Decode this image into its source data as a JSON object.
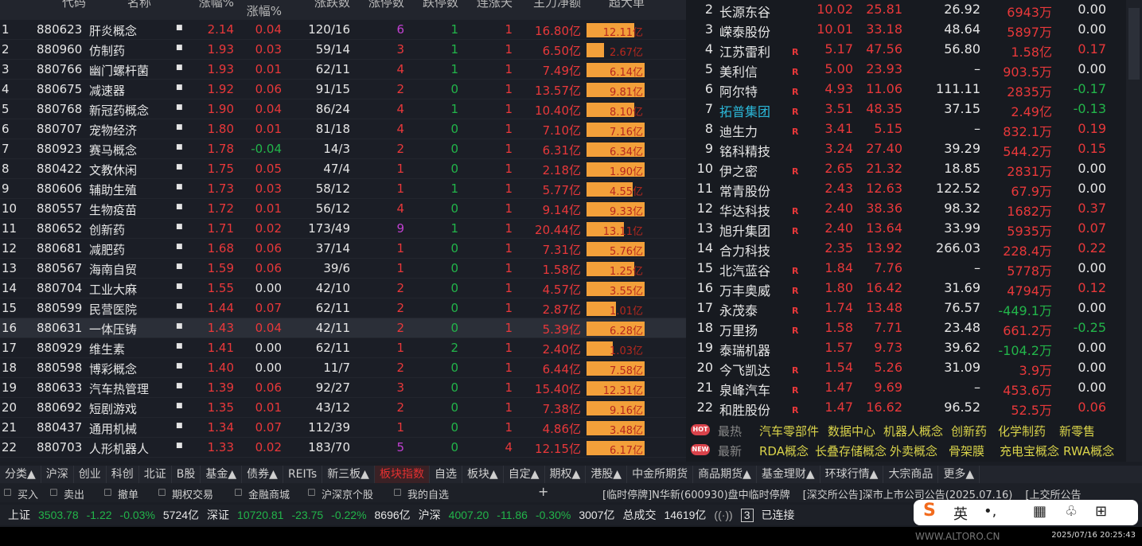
{
  "left_table": {
    "headers": [
      "代码",
      "名称",
      "涨幅%",
      "涨幅%",
      "涨跌数",
      "涨停数",
      "跌停数",
      "连涨天",
      "主力净额",
      "超大单"
    ],
    "rows": [
      [
        "1",
        "880623",
        "肝炎概念",
        "2.14",
        "0.04",
        "120/16",
        "6",
        "1",
        "1",
        "16.80亿",
        "12.11亿",
        0.82
      ],
      [
        "2",
        "880960",
        "仿制药",
        "1.93",
        "0.03",
        "59/14",
        "3",
        "1",
        "1",
        "6.50亿",
        "2.67亿",
        0.3
      ],
      [
        "3",
        "880766",
        "幽门螺杆菌",
        "1.93",
        "0.01",
        "62/11",
        "4",
        "1",
        "1",
        "7.49亿",
        "6.14亿",
        1
      ],
      [
        "4",
        "880675",
        "减速器",
        "1.92",
        "0.06",
        "91/15",
        "2",
        "0",
        "1",
        "13.57亿",
        "9.81亿",
        1
      ],
      [
        "5",
        "880768",
        "新冠药概念",
        "1.90",
        "0.04",
        "86/24",
        "4",
        "1",
        "1",
        "10.40亿",
        "8.10亿",
        0.82
      ],
      [
        "6",
        "880707",
        "宠物经济",
        "1.80",
        "0.01",
        "81/18",
        "4",
        "0",
        "1",
        "7.10亿",
        "7.16亿",
        1
      ],
      [
        "7",
        "880923",
        "赛马概念",
        "1.78",
        "-0.04",
        "14/3",
        "2",
        "0",
        "1",
        "6.31亿",
        "6.34亿",
        1
      ],
      [
        "8",
        "880422",
        "文教休闲",
        "1.75",
        "0.05",
        "47/4",
        "1",
        "0",
        "1",
        "2.18亿",
        "1.90亿",
        1
      ],
      [
        "9",
        "880606",
        "辅助生殖",
        "1.73",
        "0.03",
        "58/12",
        "1",
        "1",
        "1",
        "5.77亿",
        "4.55亿",
        0.8
      ],
      [
        "10",
        "880557",
        "生物疫苗",
        "1.72",
        "0.01",
        "56/12",
        "4",
        "0",
        "1",
        "9.14亿",
        "9.33亿",
        1
      ],
      [
        "11",
        "880652",
        "创新药",
        "1.71",
        "0.02",
        "173/49",
        "9",
        "1",
        "1",
        "20.44亿",
        "13.11亿",
        0.65
      ],
      [
        "12",
        "880681",
        "减肥药",
        "1.68",
        "0.06",
        "37/14",
        "1",
        "0",
        "1",
        "7.31亿",
        "5.76亿",
        1
      ],
      [
        "13",
        "880567",
        "海南自贸",
        "1.59",
        "0.06",
        "39/6",
        "1",
        "0",
        "1",
        "1.58亿",
        "1.25亿",
        0.82
      ],
      [
        "14",
        "880704",
        "工业大麻",
        "1.55",
        "0.00",
        "42/10",
        "2",
        "0",
        "1",
        "4.57亿",
        "3.55亿",
        1
      ],
      [
        "15",
        "880599",
        "民营医院",
        "1.44",
        "0.07",
        "62/11",
        "2",
        "0",
        "1",
        "2.87亿",
        "1.01亿",
        0.5
      ],
      [
        "16",
        "880631",
        "一体压铸",
        "1.43",
        "0.04",
        "42/11",
        "2",
        "0",
        "1",
        "5.39亿",
        "6.28亿",
        1
      ],
      [
        "17",
        "880929",
        "维生素",
        "1.41",
        "0.00",
        "62/11",
        "1",
        "2",
        "1",
        "2.40亿",
        "1.03亿",
        0.45
      ],
      [
        "18",
        "880598",
        "博彩概念",
        "1.40",
        "0.00",
        "11/7",
        "2",
        "0",
        "1",
        "6.44亿",
        "7.58亿",
        1
      ],
      [
        "19",
        "880633",
        "汽车热管理",
        "1.39",
        "0.06",
        "92/27",
        "3",
        "0",
        "1",
        "15.40亿",
        "12.31亿",
        1
      ],
      [
        "20",
        "880692",
        "短剧游戏",
        "1.35",
        "0.01",
        "43/12",
        "2",
        "0",
        "1",
        "7.38亿",
        "9.16亿",
        1
      ],
      [
        "21",
        "880437",
        "通用机械",
        "1.34",
        "0.07",
        "112/39",
        "1",
        "0",
        "1",
        "4.86亿",
        "3.48亿",
        1
      ],
      [
        "22",
        "880703",
        "人形机器人",
        "1.33",
        "0.02",
        "183/70",
        "5",
        "0",
        "4",
        "12.15亿",
        "6.17亿",
        1
      ]
    ],
    "selected_row": 16
  },
  "right_table": {
    "rows": [
      [
        "2",
        "长源东谷",
        "",
        "10.02",
        "25.81",
        "26.92",
        "6943万",
        "0.00"
      ],
      [
        "3",
        "嵘泰股份",
        "",
        "10.01",
        "33.18",
        "48.64",
        "5897万",
        "0.00"
      ],
      [
        "4",
        "江苏雷利",
        "R",
        "5.17",
        "47.56",
        "56.80",
        "1.58亿",
        "0.17"
      ],
      [
        "5",
        "美利信",
        "R",
        "5.00",
        "23.93",
        "–",
        "903.5万",
        "0.00"
      ],
      [
        "6",
        "阿尔特",
        "R",
        "4.93",
        "11.06",
        "111.11",
        "2835万",
        "-0.17"
      ],
      [
        "7",
        "拓普集团",
        "R",
        "3.51",
        "48.35",
        "37.15",
        "2.49亿",
        "-0.13"
      ],
      [
        "8",
        "迪生力",
        "R",
        "3.41",
        "5.15",
        "–",
        "832.1万",
        "0.19"
      ],
      [
        "9",
        "铭科精技",
        "",
        "3.24",
        "27.40",
        "39.29",
        "544.2万",
        "0.15"
      ],
      [
        "10",
        "伊之密",
        "R",
        "2.65",
        "21.32",
        "18.85",
        "2831万",
        "0.00"
      ],
      [
        "11",
        "常青股份",
        "",
        "2.43",
        "12.63",
        "122.52",
        "67.9万",
        "0.00"
      ],
      [
        "12",
        "华达科技",
        "R",
        "2.40",
        "38.36",
        "98.32",
        "1682万",
        "0.37"
      ],
      [
        "13",
        "旭升集团",
        "R",
        "2.40",
        "13.64",
        "33.99",
        "5935万",
        "0.07"
      ],
      [
        "14",
        "合力科技",
        "",
        "2.35",
        "13.92",
        "266.03",
        "228.4万",
        "0.22"
      ],
      [
        "15",
        "北汽蓝谷",
        "R",
        "1.84",
        "7.76",
        "–",
        "5778万",
        "0.00"
      ],
      [
        "16",
        "万丰奥威",
        "R",
        "1.80",
        "16.42",
        "31.69",
        "4794万",
        "0.12"
      ],
      [
        "17",
        "永茂泰",
        "R",
        "1.74",
        "13.48",
        "76.57",
        "-449.1万",
        "0.00"
      ],
      [
        "18",
        "万里扬",
        "R",
        "1.58",
        "7.71",
        "23.48",
        "661.2万",
        "-0.25"
      ],
      [
        "19",
        "泰瑞机器",
        "",
        "1.57",
        "9.73",
        "39.62",
        "-104.2万",
        "0.00"
      ],
      [
        "20",
        "今飞凯达",
        "R",
        "1.54",
        "5.26",
        "31.09",
        "3.9万",
        "0.00"
      ],
      [
        "21",
        "泉峰汽车",
        "R",
        "1.47",
        "9.69",
        "–",
        "453.6万",
        "0.00"
      ],
      [
        "22",
        "和胜股份",
        "R",
        "1.47",
        "16.62",
        "96.52",
        "52.5万",
        "0.06"
      ]
    ],
    "highlighted": "拓普集团"
  },
  "hot": {
    "hot_badge": "HOT",
    "hot_label": "最热",
    "hot_items": [
      "汽车零部件",
      "数据中心",
      "机器人概念",
      "创新药",
      "化学制药",
      "新零售"
    ],
    "new_badge": "NEW",
    "new_label": "最新",
    "new_items": [
      "RDA概念",
      "长叠存储概念",
      "外卖概念",
      "骨架膜",
      "充电宝概念",
      "RWA概念"
    ]
  },
  "tabs": [
    "分类▲",
    "沪深",
    "创业",
    "科创",
    "北证",
    "B股",
    "基金▲",
    "债券▲",
    "REITs",
    "新三板▲",
    "板块指数",
    "自选",
    "板块▲",
    "自定▲",
    "期权▲",
    "港股▲",
    "中金所期货",
    "商品期货▲",
    "基金理财▲",
    "环球行情▲",
    "大宗商品",
    "更多▲"
  ],
  "active_tab": "板块指数",
  "toolbar": [
    "买入",
    "卖出",
    "撤单",
    "期权交易",
    "金融商城",
    "沪深京个股",
    "我的自选"
  ],
  "ticker": [
    "[临时停牌]N华新(600930)盘中临时停牌",
    "[深交所公告]深市上市公司公告(2025.07.16)",
    "[上交所公告"
  ],
  "index_bar": {
    "sh_label": "上证",
    "sh_val": "3503.78",
    "sh_chg": "-1.22",
    "sh_pct": "-0.03%",
    "sh_amt": "5724亿",
    "sz_label": "深证",
    "sz_val": "10720.81",
    "sz_chg": "-23.75",
    "sz_pct": "-0.22%",
    "sz_amt": "8696亿",
    "hs_label": "沪深",
    "hs_val": "4007.20",
    "hs_chg": "-11.86",
    "hs_pct": "-0.30%",
    "hs_amt": "3007亿",
    "total_label": "总成交",
    "total_amt": "14619亿",
    "conn_count": "3",
    "conn_status": "已连接"
  },
  "ime": {
    "mode": "英"
  },
  "watermark": "WWW.ALTORO.CN",
  "timestamp": "2025/07/16 20:25:43",
  "colors": {
    "up": "#e8383a",
    "down": "#22b54a",
    "bar": "#f3a03a",
    "active_tab": "#e23030"
  }
}
